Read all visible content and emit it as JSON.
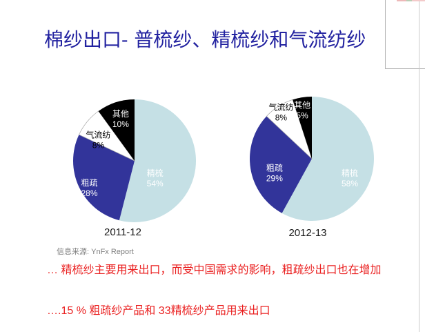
{
  "slide": {
    "title": "棉纱出口- 普梳纱、精梳纱和气流纺纱",
    "source": "信息来源: YnFx Report",
    "bullets": [
      "… 精梳纱主要用来出口，而受中国需求的影响，粗疏纱出口也在增加",
      "….15 % 粗疏纱产品和 33精梳纱产品用来出口"
    ],
    "colors": {
      "title_text": "#2222A0",
      "bullet_text": "#EA1F1F",
      "source_text": "#7F7F7F"
    }
  },
  "chart_data": [
    {
      "type": "pie",
      "title": "2011-12",
      "labels": [
        "精梳",
        "粗疏",
        "气流纺",
        "其他"
      ],
      "values": [
        54,
        28,
        8,
        10
      ],
      "unit": "%",
      "colors": [
        "#C5E0E5",
        "#32349A",
        "#FFFFFF",
        "#000000"
      ],
      "label_colors": [
        "#FFFFFF",
        "#FFFFFF",
        "#000000",
        "#FFFFFF"
      ],
      "start_angle_deg": 0,
      "direction": "clockwise",
      "legend": "none",
      "labels_position": "inside"
    },
    {
      "type": "pie",
      "title": "2012-13",
      "labels": [
        "精梳",
        "粗疏",
        "气流纺",
        "其他"
      ],
      "values": [
        58,
        29,
        8,
        5
      ],
      "unit": "%",
      "colors": [
        "#C5E0E5",
        "#32349A",
        "#FFFFFF",
        "#000000"
      ],
      "label_colors": [
        "#FFFFFF",
        "#FFFFFF",
        "#000000",
        "#FFFFFF"
      ],
      "start_angle_deg": 0,
      "direction": "clockwise",
      "legend": "none",
      "labels_position": "inside"
    }
  ]
}
